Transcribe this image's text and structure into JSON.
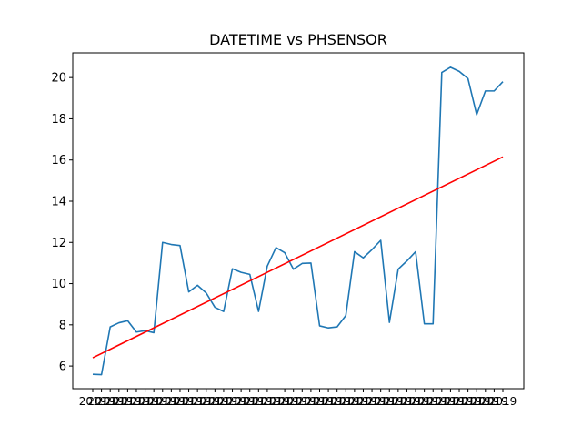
{
  "chart_data": {
    "type": "line",
    "title": "DATETIME vs PHSENSOR",
    "xlabel": "",
    "ylabel": "",
    "ylim": [
      4.9,
      21.2
    ],
    "yticks": [
      6,
      8,
      10,
      12,
      14,
      16,
      18,
      20
    ],
    "x_first_label": "2019",
    "grid": false,
    "legend": "none",
    "colors": {
      "series": "#1f77b4",
      "trend": "#ff0000"
    },
    "series": [
      {
        "values": [
          5.6,
          5.58,
          7.9,
          8.1,
          8.2,
          7.65,
          7.72,
          7.62,
          12.0,
          11.9,
          11.85,
          9.6,
          9.92,
          9.55,
          8.85,
          8.65,
          10.72,
          10.55,
          10.45,
          8.65,
          10.85,
          11.75,
          11.5,
          10.7,
          10.98,
          11.0,
          7.95,
          7.85,
          7.9,
          8.45,
          11.55,
          11.25,
          11.65,
          12.1,
          8.12,
          10.7,
          11.1,
          11.55,
          8.05,
          8.05,
          20.25,
          20.5,
          20.3,
          19.95,
          18.2,
          19.35,
          19.35,
          19.8
        ]
      },
      {
        "values": [
          6.4,
          16.15
        ]
      }
    ]
  }
}
